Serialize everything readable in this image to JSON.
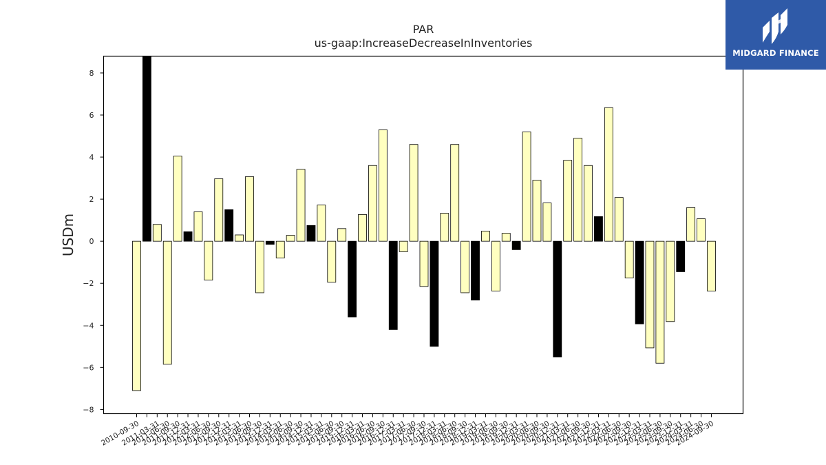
{
  "logo": {
    "text": "MIDGARD FINANCE",
    "bg_color": "#2f5aa8"
  },
  "chart_data": {
    "type": "bar",
    "title": "PAR",
    "subtitle": "us-gaap:IncreaseDecreaseInInventories",
    "ylabel": "USDm",
    "xlabel": "",
    "ylim": [
      -8.2,
      8.8
    ],
    "yticks": [
      -8,
      -6,
      -4,
      -2,
      0,
      2,
      4,
      6,
      8
    ],
    "colors": {
      "default": "#ffffc0",
      "highlight": "#000000",
      "edge": "#000000"
    },
    "categories": [
      "2010-09-30",
      "2010-12-31",
      "2011-03-31",
      "2011-06-30",
      "2011-09-30",
      "2011-12-31",
      "2012-03-31",
      "2012-06-30",
      "2012-09-30",
      "2012-12-31",
      "2013-03-31",
      "2013-06-30",
      "2013-09-30",
      "2013-12-31",
      "2014-03-31",
      "2014-06-30",
      "2014-09-30",
      "2014-12-31",
      "2015-03-31",
      "2015-06-30",
      "2015-09-30",
      "2015-12-31",
      "2016-03-31",
      "2016-06-30",
      "2016-09-30",
      "2016-12-31",
      "2017-03-31",
      "2017-06-30",
      "2017-09-30",
      "2017-12-31",
      "2018-03-31",
      "2018-06-30",
      "2018-09-30",
      "2018-12-31",
      "2019-03-31",
      "2019-06-30",
      "2019-09-30",
      "2019-12-31",
      "2020-03-31",
      "2020-06-30",
      "2020-09-30",
      "2020-12-31",
      "2021-03-31",
      "2021-06-30",
      "2021-09-30",
      "2021-12-31",
      "2022-03-31",
      "2022-06-30",
      "2022-09-30",
      "2022-12-31",
      "2023-03-31",
      "2023-06-30",
      "2023-09-30",
      "2023-12-31",
      "2024-03-31",
      "2024-06-30",
      "2024-09-30"
    ],
    "xtick_labels_shown": [
      "2010-09-30",
      "2011-03-31",
      "2011-06-30",
      "2011-09-30",
      "2011-12-31",
      "2012-03-31",
      "2012-06-30",
      "2012-09-30",
      "2012-12-31",
      "2013-03-31",
      "2013-06-30",
      "2013-09-30",
      "2013-12-31",
      "2014-03-31",
      "2014-06-30",
      "2014-09-30",
      "2014-12-31",
      "2015-03-31",
      "2015-06-30",
      "2015-09-30",
      "2015-12-31",
      "2016-03-31",
      "2016-06-30",
      "2016-09-30",
      "2016-12-31",
      "2017-03-31",
      "2017-06-30",
      "2017-09-30",
      "2017-12-31",
      "2018-03-31",
      "2018-06-30",
      "2018-09-30",
      "2018-12-31",
      "2019-03-31",
      "2019-06-30",
      "2019-09-30",
      "2019-12-31",
      "2020-03-31",
      "2020-06-30",
      "2020-09-30",
      "2020-12-31",
      "2021-03-31",
      "2021-06-30",
      "2021-09-30",
      "2021-12-31",
      "2022-03-31",
      "2022-06-30",
      "2022-09-30",
      "2022-12-31",
      "2023-03-31",
      "2023-06-30",
      "2023-09-30",
      "2023-12-31",
      "2024-03-31",
      "2024-06-30",
      "2024-09-30"
    ],
    "values": [
      -7.1,
      8.8,
      0.8,
      -5.85,
      4.05,
      0.45,
      1.4,
      -1.85,
      2.97,
      1.5,
      0.3,
      3.07,
      -2.45,
      -0.15,
      -0.8,
      0.28,
      3.42,
      0.75,
      1.72,
      -1.95,
      0.6,
      -3.6,
      1.27,
      3.6,
      5.3,
      -4.2,
      -0.5,
      4.6,
      -2.15,
      -5.0,
      1.33,
      4.6,
      -2.45,
      -2.8,
      0.48,
      -2.37,
      0.38,
      -0.4,
      5.2,
      2.9,
      1.82,
      -5.5,
      3.85,
      4.9,
      3.6,
      1.17,
      6.35,
      2.08,
      -1.75,
      -3.93,
      -5.07,
      -5.8,
      -3.82,
      -1.45,
      1.6,
      1.07,
      -2.37
    ],
    "highlight": [
      false,
      true,
      false,
      false,
      false,
      true,
      false,
      false,
      false,
      true,
      false,
      false,
      false,
      true,
      false,
      false,
      false,
      true,
      false,
      false,
      false,
      true,
      false,
      false,
      false,
      true,
      false,
      false,
      false,
      true,
      false,
      false,
      false,
      true,
      false,
      false,
      false,
      true,
      false,
      false,
      false,
      true,
      false,
      false,
      false,
      true,
      false,
      false,
      false,
      true,
      false,
      false,
      false,
      true,
      false,
      false,
      false
    ],
    "grid": false,
    "legend": "none"
  }
}
